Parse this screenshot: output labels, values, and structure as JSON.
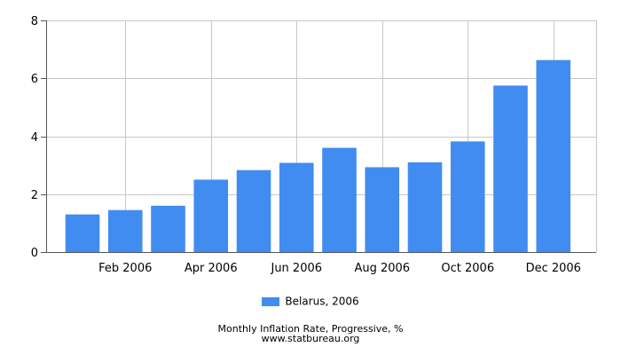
{
  "chart_data": {
    "type": "bar",
    "categories": [
      "Jan 2006",
      "Feb 2006",
      "Mar 2006",
      "Apr 2006",
      "May 2006",
      "Jun 2006",
      "Jul 2006",
      "Aug 2006",
      "Sep 2006",
      "Oct 2006",
      "Nov 2006",
      "Dec 2006"
    ],
    "x_tick_labels": [
      "",
      "Feb 2006",
      "",
      "Apr 2006",
      "",
      "Jun 2006",
      "",
      "Aug 2006",
      "",
      "Oct 2006",
      "",
      "Dec 2006"
    ],
    "series": [
      {
        "name": "Belarus, 2006",
        "values": [
          1.3,
          1.45,
          1.6,
          2.5,
          2.83,
          3.08,
          3.6,
          2.93,
          3.1,
          3.82,
          5.75,
          6.63
        ],
        "color": "#418cf0"
      }
    ],
    "ylim": [
      0,
      8
    ],
    "y_ticks": [
      "0",
      "2",
      "4",
      "6",
      "8"
    ],
    "grid": true,
    "legend_position": "bottom",
    "title": "Monthly Inflation Rate, Progressive, %",
    "source": "www.statbureau.org"
  }
}
